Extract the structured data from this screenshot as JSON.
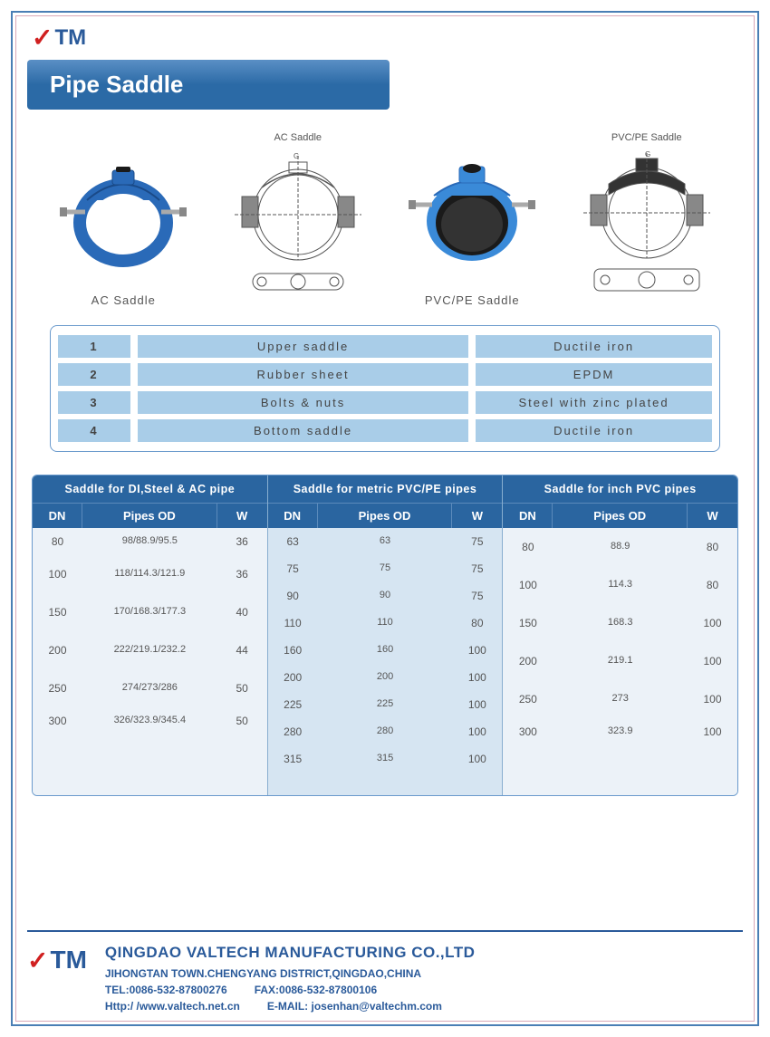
{
  "logo_text": "TM",
  "title": "Pipe Saddle",
  "diagrams": {
    "ac_photo_label": "AC Saddle",
    "ac_drawing_label": "AC Saddle",
    "pvc_photo_label": "PVC/PE Saddle",
    "pvc_drawing_label": "PVC/PE Saddle"
  },
  "colors": {
    "brand_blue": "#2a5a9a",
    "brand_red": "#d02020",
    "header_blue": "#2a65a0",
    "light_cell": "#a9cde8",
    "table_bg_a": "#ecf2f8",
    "table_bg_b": "#d6e5f2",
    "border_blue": "#6a9acc"
  },
  "components": {
    "rows": [
      {
        "num": "1",
        "part": "Upper saddle",
        "material": "Ductile iron"
      },
      {
        "num": "2",
        "part": "Rubber sheet",
        "material": "EPDM"
      },
      {
        "num": "3",
        "part": "Bolts & nuts",
        "material": "Steel with zinc plated"
      },
      {
        "num": "4",
        "part": "Bottom saddle",
        "material": "Ductile iron"
      }
    ]
  },
  "spec_tables": {
    "headers": {
      "dn": "DN",
      "od": "Pipes OD",
      "w": "W"
    },
    "groups": [
      {
        "title": "Saddle for DI,Steel & AC pipe",
        "alt": false,
        "rows": [
          {
            "dn": "80",
            "od": "98/88.9/95.5",
            "w": "36",
            "big": false
          },
          {
            "dn": "100",
            "od": "118/114.3/121.9",
            "w": "36",
            "big": true
          },
          {
            "dn": "150",
            "od": "170/168.3/177.3",
            "w": "40",
            "big": true
          },
          {
            "dn": "200",
            "od": "222/219.1/232.2",
            "w": "44",
            "big": true
          },
          {
            "dn": "250",
            "od": "274/273/286",
            "w": "50",
            "big": true
          },
          {
            "dn": "300",
            "od": "326/323.9/345.4",
            "w": "50",
            "big": false
          }
        ]
      },
      {
        "title": "Saddle for metric PVC/PE pipes",
        "alt": true,
        "rows": [
          {
            "dn": "63",
            "od": "63",
            "w": "75",
            "big": false
          },
          {
            "dn": "75",
            "od": "75",
            "w": "75",
            "big": false
          },
          {
            "dn": "90",
            "od": "90",
            "w": "75",
            "big": false
          },
          {
            "dn": "110",
            "od": "110",
            "w": "80",
            "big": false
          },
          {
            "dn": "160",
            "od": "160",
            "w": "100",
            "big": false
          },
          {
            "dn": "200",
            "od": "200",
            "w": "100",
            "big": false
          },
          {
            "dn": "225",
            "od": "225",
            "w": "100",
            "big": false
          },
          {
            "dn": "280",
            "od": "280",
            "w": "100",
            "big": false
          },
          {
            "dn": "315",
            "od": "315",
            "w": "100",
            "big": false
          }
        ]
      },
      {
        "title": "Saddle for inch PVC pipes",
        "alt": false,
        "rows": [
          {
            "dn": "80",
            "od": "88.9",
            "w": "80",
            "big": true
          },
          {
            "dn": "100",
            "od": "114.3",
            "w": "80",
            "big": true
          },
          {
            "dn": "150",
            "od": "168.3",
            "w": "100",
            "big": true
          },
          {
            "dn": "200",
            "od": "219.1",
            "w": "100",
            "big": true
          },
          {
            "dn": "250",
            "od": "273",
            "w": "100",
            "big": true
          },
          {
            "dn": "300",
            "od": "323.9",
            "w": "100",
            "big": false
          }
        ]
      }
    ]
  },
  "footer": {
    "company": "QINGDAO VALTECH MANUFACTURING CO.,LTD",
    "address": "JIHONGTAN TOWN.CHENGYANG DISTRICT,QINGDAO,CHINA",
    "tel_label": "TEL:",
    "tel": "0086-532-87800276",
    "fax_label": "FAX:",
    "fax": "0086-532-87800106",
    "http_label": "Http:/ /",
    "http": "www.valtech.net.cn",
    "email_label": "E-MAIL:",
    "email": "josenhan@valtechm.com"
  }
}
